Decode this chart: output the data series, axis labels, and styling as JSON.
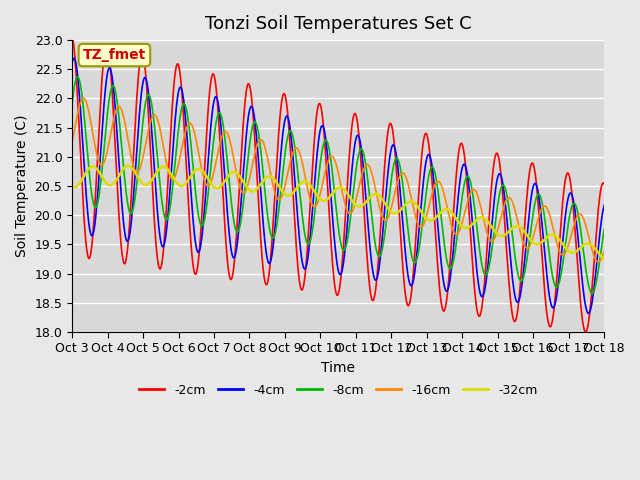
{
  "title": "Tonzi Soil Temperatures Set C",
  "xlabel": "Time",
  "ylabel": "Soil Temperature (C)",
  "ylim": [
    18.0,
    23.0
  ],
  "yticks": [
    18.0,
    18.5,
    19.0,
    19.5,
    20.0,
    20.5,
    21.0,
    21.5,
    22.0,
    22.5,
    23.0
  ],
  "xtick_labels": [
    "Oct 3",
    "Oct 4",
    "Oct 5",
    "Oct 6",
    "Oct 7",
    "Oct 8",
    "Oct 9",
    "Oct 10",
    "Oct 11",
    "Oct 12",
    "Oct 13",
    "Oct 14",
    "Oct 15",
    "Oct 16",
    "Oct 17",
    "Oct 18"
  ],
  "colors": {
    "-2cm": "#ff0000",
    "-4cm": "#0000ff",
    "-8cm": "#00bb00",
    "-16cm": "#ff8800",
    "-32cm": "#dddd00"
  },
  "legend_label": "TZ_fmet",
  "background_color": "#e8e8e8",
  "plot_bg_color": "#d8d8d8",
  "grid_color": "#ffffff",
  "title_fontsize": 13,
  "axis_fontsize": 10,
  "tick_fontsize": 9
}
